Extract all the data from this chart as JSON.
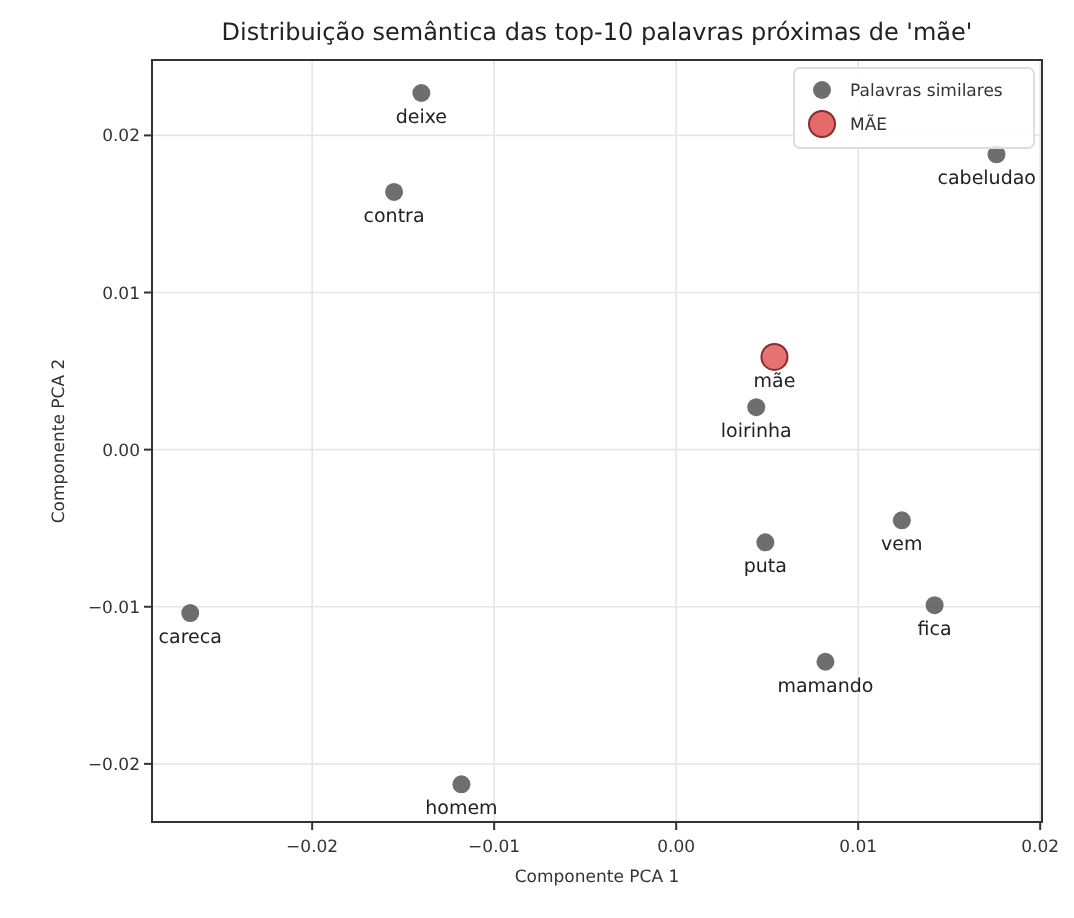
{
  "chart_data": {
    "type": "scatter",
    "title": "Distribuição semântica das top-10 palavras próximas de 'mãe'",
    "xlabel": "Componente PCA 1",
    "ylabel": "Componente PCA 2",
    "xlim": [
      -0.0288,
      0.0201
    ],
    "ylim": [
      -0.0237,
      0.0248
    ],
    "xticks": [
      {
        "value": -0.02,
        "label": "−0.02"
      },
      {
        "value": -0.01,
        "label": "−0.01"
      },
      {
        "value": 0,
        "label": "0.00"
      },
      {
        "value": 0.01,
        "label": "0.01"
      },
      {
        "value": 0.02,
        "label": "0.02"
      }
    ],
    "yticks": [
      {
        "value": -0.02,
        "label": "−0.02"
      },
      {
        "value": -0.01,
        "label": "−0.01"
      },
      {
        "value": 0,
        "label": "0.00"
      },
      {
        "value": 0.01,
        "label": "0.01"
      },
      {
        "value": 0.02,
        "label": "0.02"
      }
    ],
    "grid": true,
    "legend": "top right",
    "marker": "circle",
    "series": [
      {
        "name": "Palavras similares",
        "color": "#555555",
        "x": [
          -0.014,
          -0.0155,
          0.0176,
          0.0044,
          0.0124,
          0.0049,
          0.0142,
          -0.0267,
          0.0082,
          -0.0118
        ],
        "values": [
          0.0227,
          0.0164,
          0.0188,
          0.0027,
          -0.0045,
          -0.0059,
          -0.0099,
          -0.0104,
          -0.0135,
          -0.0213
        ]
      },
      {
        "name": "MÃE",
        "color": "#e05050",
        "x": [
          0.0054
        ],
        "values": [
          0.0059
        ]
      }
    ],
    "annotations": [
      {
        "text": "deixe",
        "x": -0.014,
        "y": 0.0227
      },
      {
        "text": "contra",
        "x": -0.0155,
        "y": 0.0164
      },
      {
        "text": "cabeludao",
        "x": 0.0176,
        "y": 0.0188
      },
      {
        "text": "loirinha",
        "x": 0.0044,
        "y": 0.0027
      },
      {
        "text": "vem",
        "x": 0.0124,
        "y": -0.0045
      },
      {
        "text": "puta",
        "x": 0.0049,
        "y": -0.0059
      },
      {
        "text": "fica",
        "x": 0.0142,
        "y": -0.0099
      },
      {
        "text": "careca",
        "x": -0.0267,
        "y": -0.0104
      },
      {
        "text": "mamando",
        "x": 0.0082,
        "y": -0.0135
      },
      {
        "text": "homem",
        "x": -0.0118,
        "y": -0.0213
      },
      {
        "text": "mãe",
        "x": 0.0054,
        "y": 0.0059
      }
    ]
  }
}
